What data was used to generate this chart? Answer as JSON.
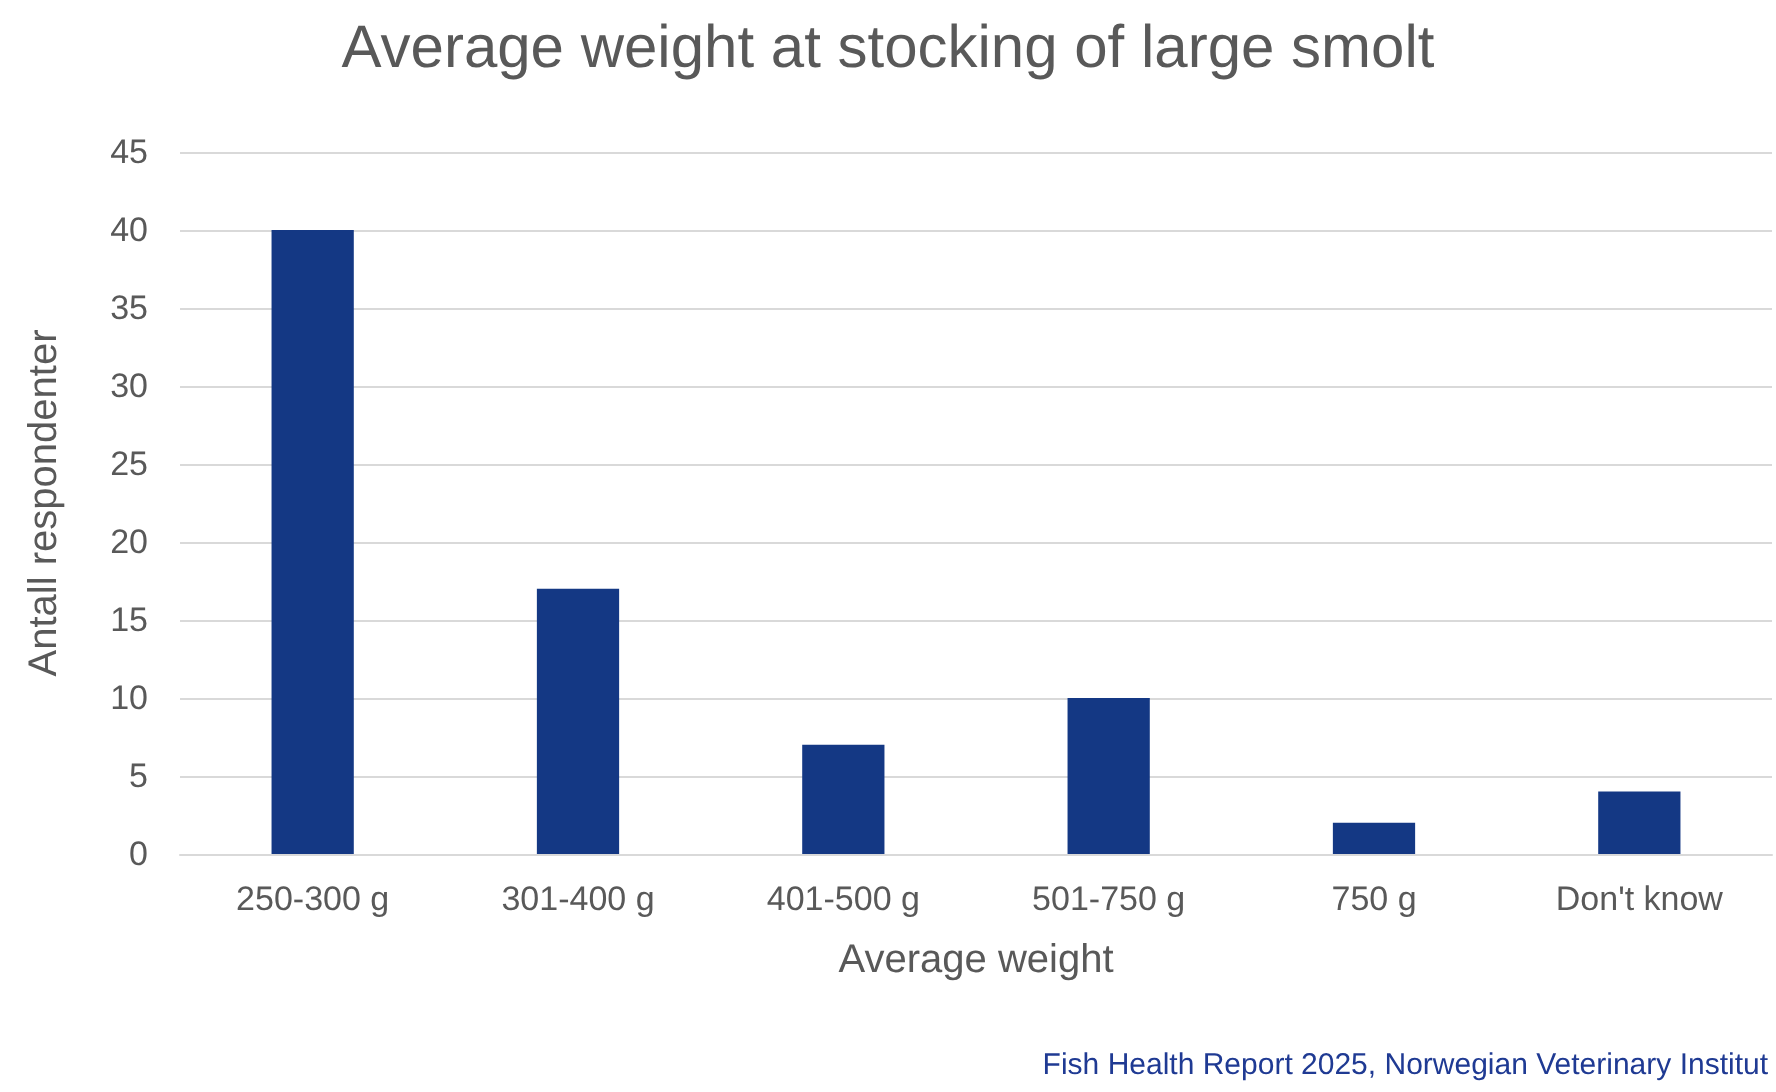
{
  "chart_data": {
    "type": "bar",
    "title": "Average weight at stocking of large smolt",
    "xlabel": "Average weight",
    "ylabel": "Antall respondenter",
    "categories": [
      "250-300 g",
      "301-400 g",
      "401-500 g",
      "501-750 g",
      "750 g",
      "Don't know"
    ],
    "values": [
      40,
      17,
      7,
      10,
      2,
      4
    ],
    "color": "#143884",
    "ylim": [
      0,
      45
    ],
    "yticks": [
      0,
      5,
      10,
      15,
      20,
      25,
      30,
      35,
      40,
      45
    ],
    "grid": "y",
    "annotations": [
      "Fish Health Report 2025, Norwegian Veterinary Institut"
    ]
  }
}
